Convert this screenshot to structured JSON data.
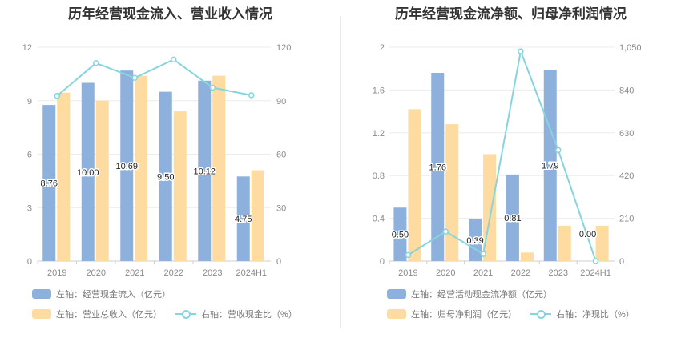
{
  "chart_data": [
    {
      "type": "bar",
      "title": "历年经营现金流入、营业收入情况",
      "categories": [
        "2019",
        "2020",
        "2021",
        "2022",
        "2023",
        "2024H1"
      ],
      "left_axis": {
        "min": 0,
        "max": 12,
        "ticks": [
          "0",
          "3",
          "6",
          "9",
          "12"
        ]
      },
      "right_axis": {
        "min": 0,
        "max": 120,
        "ticks": [
          "0",
          "30",
          "60",
          "90",
          "120"
        ]
      },
      "series": [
        {
          "name": "左轴：经营现金流入（亿元）",
          "kind": "bar",
          "axis": "left",
          "color": "#8eb0dd",
          "values": [
            8.76,
            10.0,
            10.69,
            9.5,
            10.12,
            4.75
          ],
          "labels": [
            "8.76",
            "10.00",
            "10.69",
            "9.50",
            "10.12",
            "4.75"
          ]
        },
        {
          "name": "左轴：营业总收入（亿元）",
          "kind": "bar",
          "axis": "left",
          "color": "#fedba0",
          "values": [
            9.45,
            9.0,
            10.4,
            8.4,
            10.4,
            5.1
          ]
        },
        {
          "name": "右轴：营收现金比（%）",
          "kind": "line",
          "axis": "right",
          "color": "#86d5dc",
          "values": [
            92.7,
            111.1,
            102.8,
            113.1,
            97.3,
            93.1
          ]
        }
      ],
      "grid": true,
      "legend_position": "bottom"
    },
    {
      "type": "bar",
      "title": "历年经营现金流净额、归母净利润情况",
      "categories": [
        "2019",
        "2020",
        "2021",
        "2022",
        "2023",
        "2024H1"
      ],
      "left_axis": {
        "min": 0,
        "max": 2,
        "ticks": [
          "0",
          "0.4",
          "0.8",
          "1.2",
          "1.6",
          "2"
        ]
      },
      "right_axis": {
        "min": 0,
        "max": 1050,
        "ticks": [
          "0",
          "210",
          "420",
          "630",
          "840",
          "1,050"
        ]
      },
      "series": [
        {
          "name": "左轴：经营活动现金流净额（亿元）",
          "kind": "bar",
          "axis": "left",
          "color": "#8eb0dd",
          "values": [
            0.5,
            1.76,
            0.39,
            0.81,
            1.79,
            0.0
          ],
          "labels": [
            "0.50",
            "1.76",
            "0.39",
            "0.81",
            "1.79",
            "0.00"
          ]
        },
        {
          "name": "左轴：归母净利润（亿元）",
          "kind": "bar",
          "axis": "left",
          "color": "#fedba0",
          "values": [
            1.42,
            1.28,
            1.0,
            0.08,
            0.33,
            0.33
          ]
        },
        {
          "name": "右轴：净现比（%）",
          "kind": "line",
          "axis": "right",
          "color": "#86d5dc",
          "values": [
            30,
            145,
            35,
            1030,
            545,
            0
          ]
        }
      ],
      "grid": true,
      "legend_position": "bottom"
    }
  ]
}
